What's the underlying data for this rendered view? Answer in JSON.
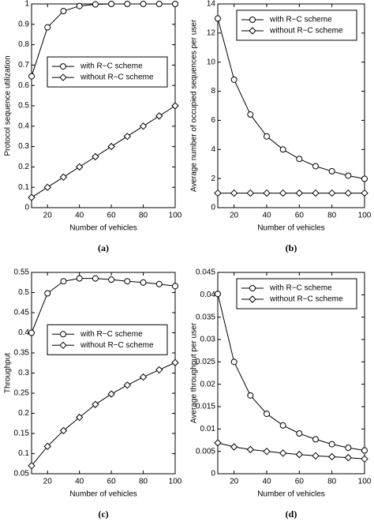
{
  "chart_data": [
    {
      "type": "line",
      "caption": "(a)",
      "xlabel": "Number of vehicles",
      "ylabel": "Protocol sequence utilization",
      "x": [
        10,
        20,
        30,
        40,
        50,
        60,
        70,
        80,
        90,
        100
      ],
      "xlim": [
        10,
        100
      ],
      "xticks": [
        20,
        40,
        60,
        80,
        100
      ],
      "ylim": [
        0,
        1
      ],
      "yticks": [
        0,
        0.1,
        0.2,
        0.3,
        0.4,
        0.5,
        0.6,
        0.7,
        0.8,
        0.9,
        1
      ],
      "legend": "center right",
      "series": [
        {
          "name": "with R−C scheme",
          "color": "#000000",
          "marker": "circle",
          "values": [
            0.645,
            0.885,
            0.965,
            0.99,
            0.998,
            1,
            1,
            1,
            1,
            1
          ]
        },
        {
          "name": "without R−C scheme",
          "color": "#000000",
          "marker": "diamond",
          "values": [
            0.05,
            0.1,
            0.15,
            0.2,
            0.25,
            0.3,
            0.35,
            0.4,
            0.45,
            0.5
          ]
        }
      ]
    },
    {
      "type": "line",
      "caption": "(b)",
      "xlabel": "Number of vehicles",
      "ylabel": "Average number of occupied sequences per user",
      "x": [
        10,
        20,
        30,
        40,
        50,
        60,
        70,
        80,
        90,
        100
      ],
      "xlim": [
        10,
        100
      ],
      "xticks": [
        20,
        40,
        60,
        80,
        100
      ],
      "ylim": [
        0,
        14
      ],
      "yticks": [
        0,
        2,
        4,
        6,
        8,
        10,
        12,
        14
      ],
      "legend": "upper right",
      "series": [
        {
          "name": "with R−C scheme",
          "color": "#000000",
          "marker": "circle",
          "values": [
            13,
            8.8,
            6.4,
            4.9,
            4.0,
            3.35,
            2.85,
            2.5,
            2.2,
            1.98
          ]
        },
        {
          "name": "without R−C scheme",
          "color": "#000000",
          "marker": "diamond",
          "values": [
            1,
            1,
            1,
            1,
            1,
            1,
            1,
            1,
            1,
            1
          ]
        }
      ]
    },
    {
      "type": "line",
      "caption": "(c)",
      "xlabel": "Number of vehicles",
      "ylabel": "Throughput",
      "x": [
        10,
        20,
        30,
        40,
        50,
        60,
        70,
        80,
        90,
        100
      ],
      "xlim": [
        10,
        100
      ],
      "xticks": [
        20,
        40,
        60,
        80,
        100
      ],
      "ylim": [
        0.05,
        0.55
      ],
      "yticks": [
        0.05,
        0.1,
        0.15,
        0.2,
        0.25,
        0.3,
        0.35,
        0.4,
        0.45,
        0.5,
        0.55
      ],
      "legend": "center right",
      "series": [
        {
          "name": "with R−C scheme",
          "color": "#000000",
          "marker": "circle",
          "values": [
            0.4,
            0.498,
            0.528,
            0.535,
            0.535,
            0.532,
            0.528,
            0.525,
            0.521,
            0.516
          ]
        },
        {
          "name": "without R−C scheme",
          "color": "#000000",
          "marker": "diamond",
          "values": [
            0.07,
            0.118,
            0.157,
            0.19,
            0.222,
            0.248,
            0.27,
            0.29,
            0.308,
            0.326
          ]
        }
      ]
    },
    {
      "type": "line",
      "caption": "(d)",
      "xlabel": "Number of vehicles",
      "ylabel": "Average throughput per user",
      "x": [
        10,
        20,
        30,
        40,
        50,
        60,
        70,
        80,
        90,
        100
      ],
      "xlim": [
        10,
        100
      ],
      "xticks": [
        20,
        40,
        60,
        80,
        100
      ],
      "ylim": [
        0,
        0.045
      ],
      "yticks": [
        0,
        0.005,
        0.01,
        0.015,
        0.02,
        0.025,
        0.03,
        0.035,
        0.04,
        0.045
      ],
      "legend": "upper right",
      "series": [
        {
          "name": "with R−C scheme",
          "color": "#000000",
          "marker": "circle",
          "values": [
            0.0402,
            0.025,
            0.0175,
            0.0134,
            0.0108,
            0.009,
            0.0077,
            0.0066,
            0.0058,
            0.0052
          ]
        },
        {
          "name": "without R−C scheme",
          "color": "#000000",
          "marker": "diamond",
          "values": [
            0.0069,
            0.006,
            0.0054,
            0.005,
            0.0046,
            0.0043,
            0.004,
            0.0038,
            0.0036,
            0.0033
          ]
        }
      ]
    }
  ]
}
